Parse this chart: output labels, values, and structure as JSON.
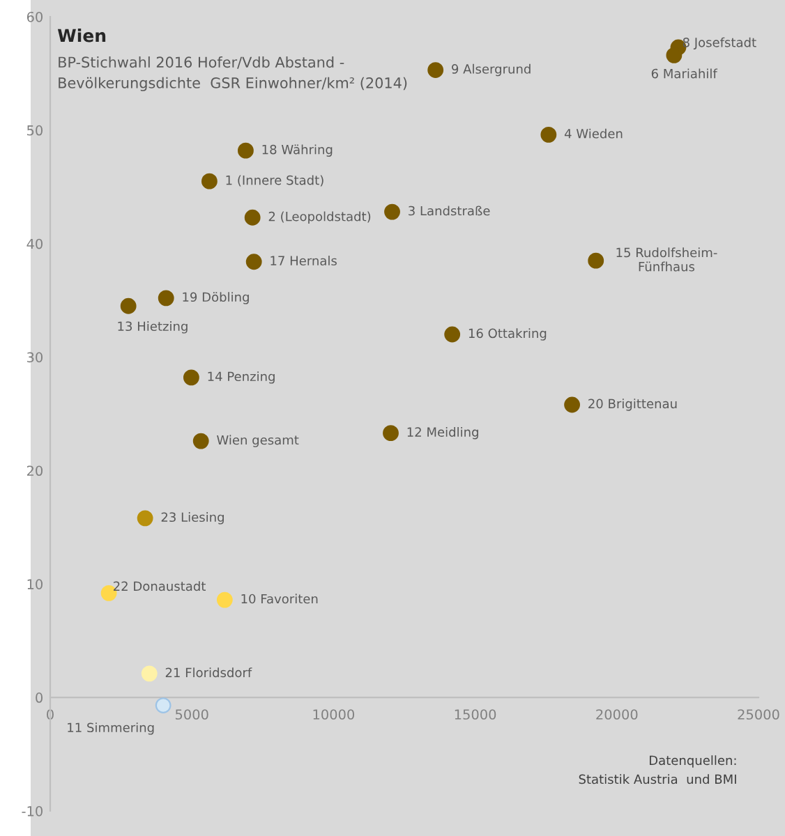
{
  "chart_data": {
    "type": "scatter",
    "title": "Wien",
    "subtitle": "BP-Stichwahl 2016 Hofer/Vdb Abstand -\nBevölkerungsdichte  GSR Einwohner/km² (2014)",
    "x": [
      22170,
      22020,
      13600,
      17590,
      6900,
      5620,
      7140,
      12070,
      7190,
      19260,
      4090,
      2760,
      14190,
      4980,
      18420,
      5320,
      12020,
      3350,
      2070,
      6160,
      3500,
      3990
    ],
    "values": [
      57.3,
      56.6,
      55.3,
      49.6,
      48.2,
      45.5,
      42.3,
      42.8,
      38.4,
      38.5,
      35.2,
      34.5,
      32.0,
      28.2,
      25.8,
      22.6,
      23.3,
      15.8,
      9.2,
      8.6,
      2.1,
      -0.7
    ],
    "colors": [
      "#7a5a00",
      "#7a5a00",
      "#7a5a00",
      "#7a5a00",
      "#7a5a00",
      "#7a5a00",
      "#7a5a00",
      "#7a5a00",
      "#7a5a00",
      "#7a5a00",
      "#7a5a00",
      "#7a5a00",
      "#7a5a00",
      "#7a5a00",
      "#7a5a00",
      "#7a5a00",
      "#7a5a00",
      "#b8900c",
      "#ffd84a",
      "#ffd84a",
      "#fff2a8",
      "#d4e8f6"
    ],
    "xlim": [
      0,
      25000
    ],
    "xticks": [
      0,
      5000,
      10000,
      15000,
      20000,
      25000
    ],
    "ylim": [
      -10,
      60
    ],
    "yticks": [
      -10,
      0,
      10,
      20,
      30,
      40,
      50,
      60
    ],
    "grid": false,
    "marker": "circle",
    "annotations": [
      {
        "text": "8 Josefstadt",
        "x": 22170,
        "y": 57.3
      },
      {
        "text": "6 Mariahilf",
        "x": 22020,
        "y": 56.6
      },
      {
        "text": "9 Alsergrund",
        "x": 13600,
        "y": 55.3
      },
      {
        "text": "4 Wieden",
        "x": 17590,
        "y": 49.6
      },
      {
        "text": "18 Währing",
        "x": 6900,
        "y": 48.2
      },
      {
        "text": "1 (Innere Stadt)",
        "x": 5620,
        "y": 45.5
      },
      {
        "text": "2 (Leopoldstadt)",
        "x": 7140,
        "y": 42.3
      },
      {
        "text": "3 Landstraße",
        "x": 12070,
        "y": 42.8
      },
      {
        "text": "17 Hernals",
        "x": 7190,
        "y": 38.4
      },
      {
        "text": "15 Rudolfsheim-\nFünfhaus",
        "x": 19260,
        "y": 38.5
      },
      {
        "text": "19 Döbling",
        "x": 4090,
        "y": 35.2
      },
      {
        "text": "13 Hietzing",
        "x": 2760,
        "y": 34.5
      },
      {
        "text": "16 Ottakring",
        "x": 14190,
        "y": 32.0
      },
      {
        "text": "14 Penzing",
        "x": 4980,
        "y": 28.2
      },
      {
        "text": "20 Brigittenau",
        "x": 18420,
        "y": 25.8
      },
      {
        "text": "Wien gesamt",
        "x": 5320,
        "y": 22.6
      },
      {
        "text": "12 Meidling",
        "x": 12020,
        "y": 23.3
      },
      {
        "text": "23 Liesing",
        "x": 3350,
        "y": 15.8
      },
      {
        "text": "22 Donaustadt",
        "x": 2070,
        "y": 9.2
      },
      {
        "text": "10 Favoriten",
        "x": 6160,
        "y": 8.6
      },
      {
        "text": "21 Floridsdorf",
        "x": 3500,
        "y": 2.1
      },
      {
        "text": "11 Simmering",
        "x": 3990,
        "y": -0.7
      },
      "Datenquellen:\nStatistik Austria  und BMI"
    ]
  }
}
